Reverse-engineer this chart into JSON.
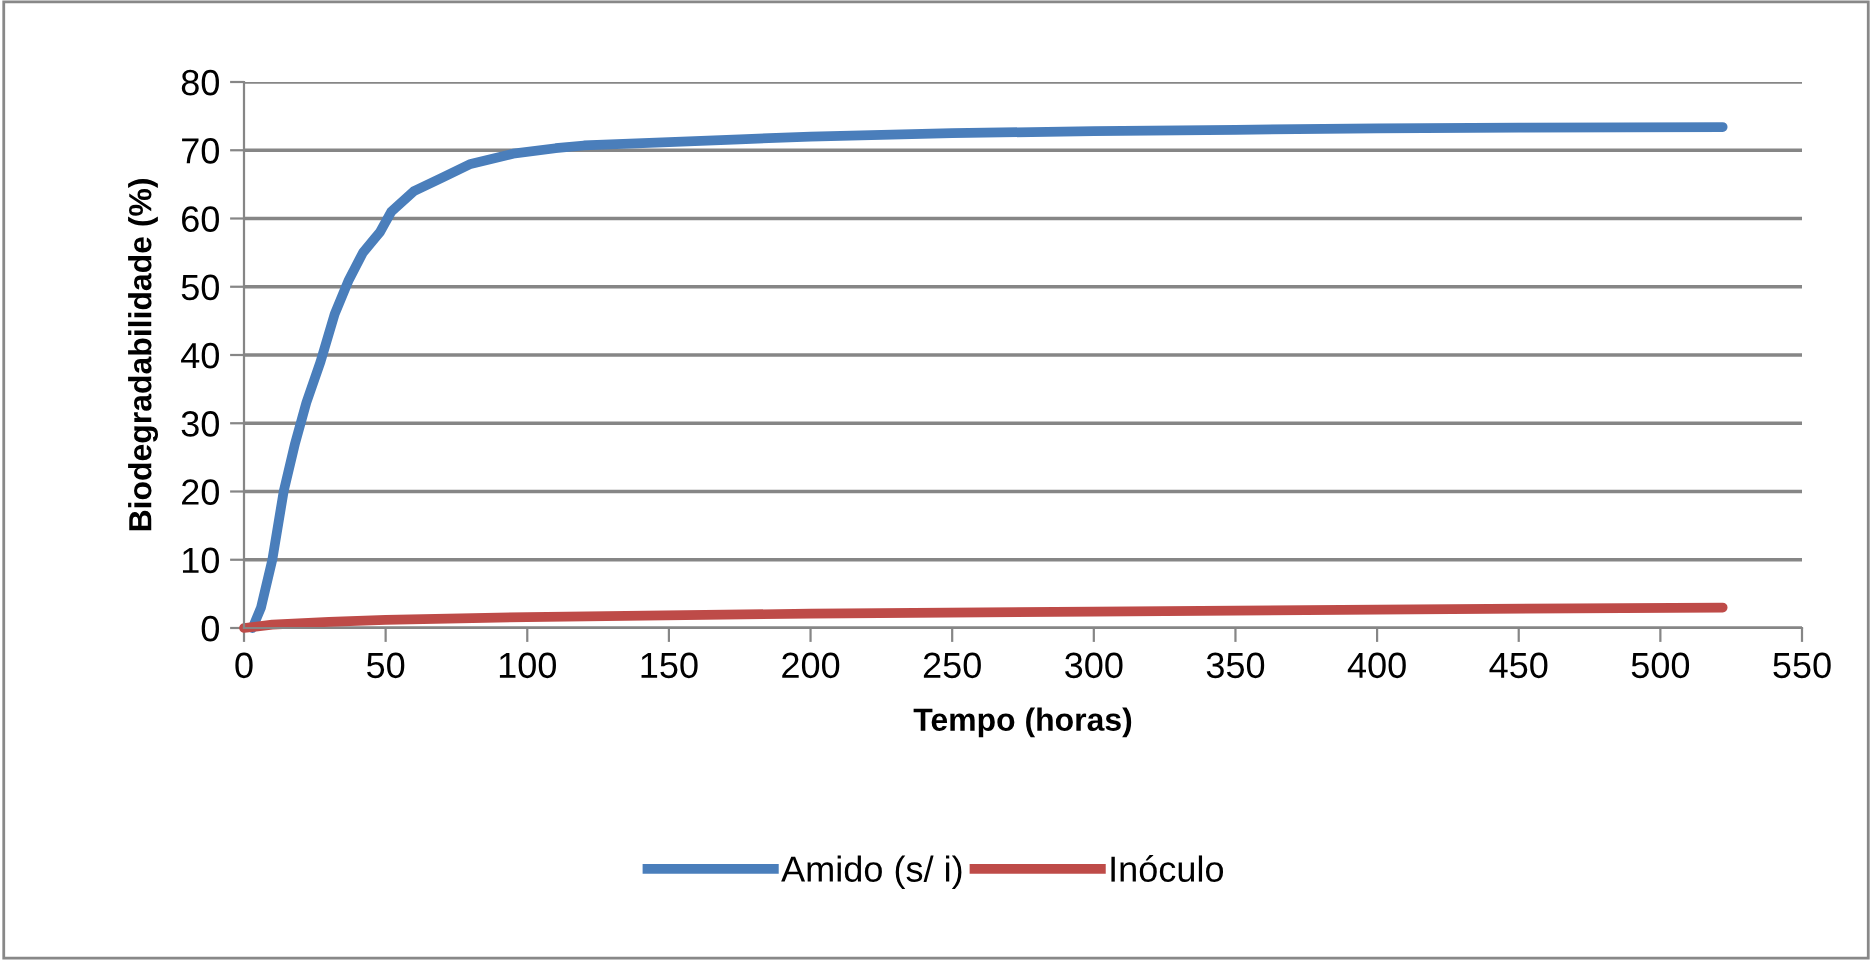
{
  "chart_data": {
    "type": "line",
    "xlabel": "Tempo (horas)",
    "ylabel": "Biodegradabilidade (%)",
    "xlim": [
      0,
      550
    ],
    "xticks": [
      0,
      50,
      100,
      150,
      200,
      250,
      300,
      350,
      400,
      450,
      500,
      550
    ],
    "ylim": [
      0,
      80
    ],
    "yticks": [
      0,
      10,
      20,
      30,
      40,
      50,
      60,
      70,
      80
    ],
    "grid": "y",
    "legend": "bottom",
    "line_style": "solid",
    "series": [
      {
        "name": "Amido (s/ i)",
        "color": "#4a7ebb",
        "x": [
          3,
          6,
          10,
          14,
          18,
          22,
          27,
          32,
          37,
          42,
          46,
          48,
          52,
          60,
          70,
          80,
          95,
          110,
          120,
          150,
          175,
          200,
          250,
          300,
          350,
          400,
          450,
          522
        ],
        "values": [
          0,
          3,
          10,
          20,
          27,
          33,
          39,
          46,
          51,
          55,
          57,
          58,
          61,
          64,
          66,
          68,
          69.5,
          70.3,
          70.7,
          71.2,
          71.6,
          72,
          72.5,
          72.8,
          73,
          73.2,
          73.3,
          73.4
        ]
      },
      {
        "name": "Inóculo",
        "color": "#be4b48",
        "x": [
          0,
          10,
          30,
          50,
          100,
          200,
          300,
          400,
          522
        ],
        "values": [
          0,
          0.5,
          0.9,
          1.2,
          1.6,
          2.1,
          2.4,
          2.7,
          3.0
        ]
      }
    ]
  }
}
